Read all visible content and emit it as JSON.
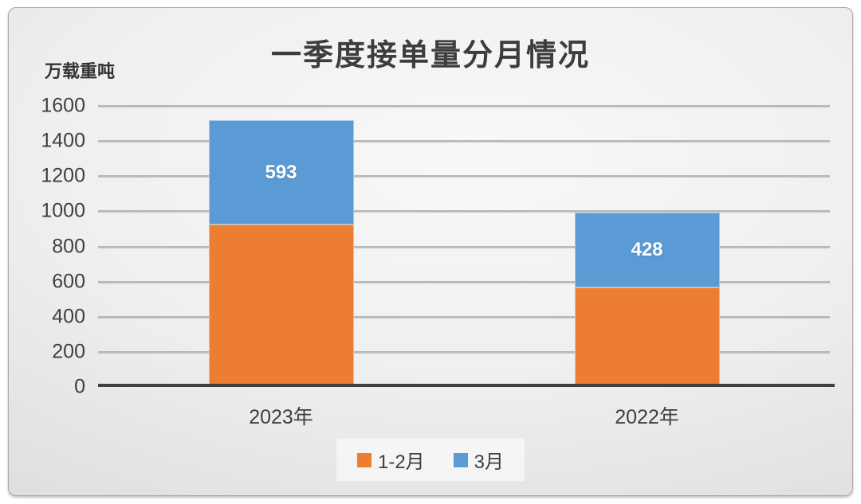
{
  "chart_data": {
    "type": "bar",
    "stacked": true,
    "title": "一季度接单量分月情况",
    "ylabel": "万载重吨",
    "categories": [
      "2023年",
      "2022年"
    ],
    "series": [
      {
        "name": "1-2月",
        "color": "#ED7D31",
        "values": [
          925,
          566
        ],
        "labels_visible": false
      },
      {
        "name": "3月",
        "color": "#5B9BD5",
        "values": [
          593,
          428
        ],
        "labels_visible": true
      }
    ],
    "visible_data_labels": [
      "593",
      "428"
    ],
    "ylim": [
      0,
      1600
    ],
    "yticks": [
      0,
      200,
      400,
      600,
      800,
      1000,
      1200,
      1400,
      1600
    ],
    "grid": true,
    "legend_position": "bottom"
  },
  "colors": {
    "series_orange": "#ED7D31",
    "series_blue": "#5B9BD5",
    "text": "#3F3F3F",
    "axis_line": "#404040",
    "gridline": "#B7B7B7",
    "data_label_text": "#FFFFFF"
  }
}
